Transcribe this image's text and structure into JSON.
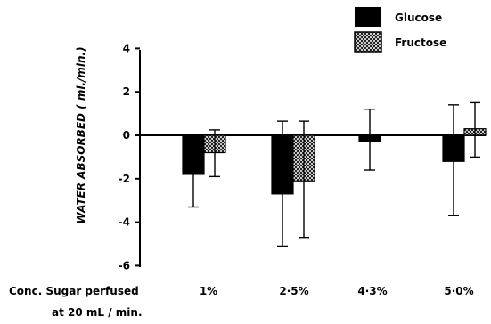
{
  "chart_data": {
    "type": "bar",
    "categories": [
      "1%",
      "2·5%",
      "4·3%",
      "5·0%"
    ],
    "series": [
      {
        "name": "Glucose",
        "values": [
          -1.8,
          -2.7,
          -0.3,
          -1.2
        ],
        "error_low": [
          -3.3,
          -5.1,
          -1.6,
          -3.7
        ],
        "error_high": [
          0.0,
          0.65,
          1.2,
          1.4
        ],
        "fill": "solid",
        "color": "#000000"
      },
      {
        "name": "Fructose",
        "values": [
          -0.8,
          -2.1,
          null,
          0.3
        ],
        "error_low": [
          -1.9,
          -4.7,
          null,
          -1.0
        ],
        "error_high": [
          0.25,
          0.65,
          null,
          1.5
        ],
        "fill": "crosshatch",
        "color": "#000000"
      }
    ],
    "ylabel": "WATER ABSORBED ( ml./min.)",
    "xlabel_lines": [
      "Conc. Sugar perfused",
      "at 20 mL / min."
    ],
    "yticks": [
      "4",
      "2",
      "0",
      "-2",
      "-4",
      "-6"
    ],
    "ylim": [
      -6,
      4
    ],
    "legend_position": "top-right",
    "grid": false
  }
}
